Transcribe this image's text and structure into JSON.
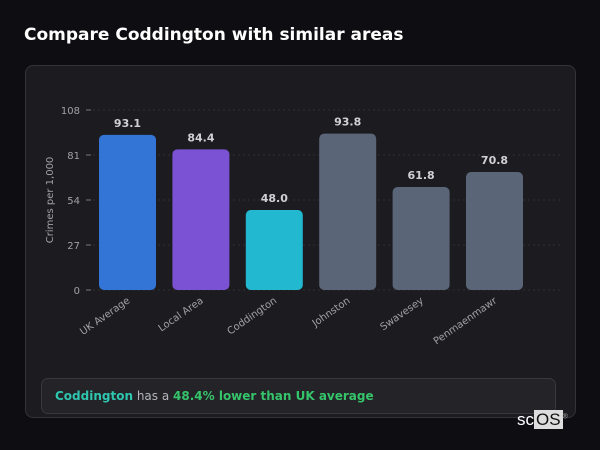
{
  "title": "Compare Coddington with similar areas",
  "chart_data": {
    "type": "bar",
    "ylabel": "Crimes per 1,000",
    "xlabel": "",
    "ylim": [
      0,
      108
    ],
    "yticks": [
      0,
      27,
      54,
      81,
      108
    ],
    "grid": true,
    "categories": [
      "UK Average",
      "Local Area",
      "Coddington",
      "Johnston",
      "Swavesey",
      "Penmaenmawr"
    ],
    "values": [
      93.1,
      84.4,
      48.0,
      93.8,
      61.8,
      70.8
    ],
    "data_labels": [
      "93.1",
      "84.4",
      "48.0",
      "93.8",
      "61.8",
      "70.8"
    ],
    "colors": [
      "#3375d6",
      "#7b52d4",
      "#22b8d0",
      "#5a6578",
      "#5a6578",
      "#5a6578"
    ]
  },
  "footer": {
    "area": "Coddington",
    "middle": " has a ",
    "comparison": "48.4% lower than UK average"
  },
  "logo": {
    "text": "scOS"
  }
}
